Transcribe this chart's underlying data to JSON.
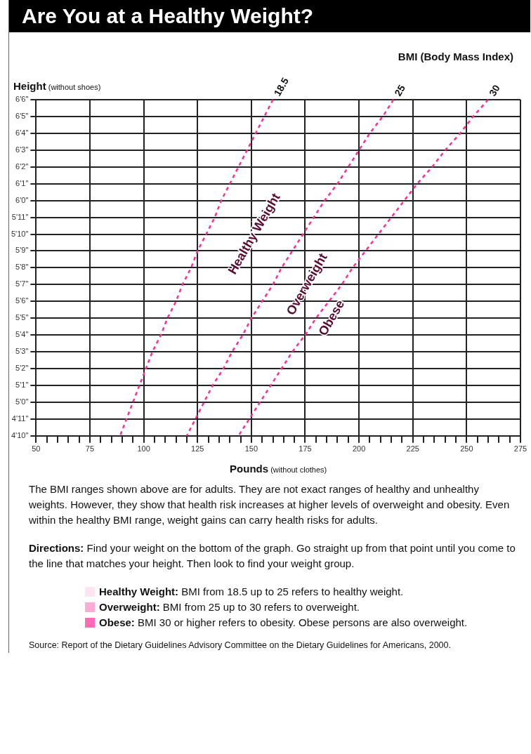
{
  "chart_data": {
    "type": "line",
    "orientation": "horizontal",
    "title": "Are You at a Healthy Weight?",
    "xlabel": "Pounds (without clothes)",
    "ylabel": "Height (without shoes)",
    "legend_title": "BMI (Body Mass Index)",
    "categories": [
      "6'6\"",
      "6'5\"",
      "6'4\"",
      "6'3\"",
      "6'2\"",
      "6'1\"",
      "6'0\"",
      "5'11\"",
      "5'10\"",
      "5'9\"",
      "5'8\"",
      "5'7\"",
      "5'6\"",
      "5'5\"",
      "5'4\"",
      "5'3\"",
      "5'2\"",
      "5'1\"",
      "5'0\"",
      "4'11\"",
      "4'10\""
    ],
    "xlim": [
      50,
      275
    ],
    "xticks": [
      50,
      {
        "value": 55,
        "label": null
      },
      {
        "value": 60,
        "label": null
      },
      {
        "value": 65,
        "label": null
      },
      {
        "value": 70,
        "label": null
      },
      75,
      {
        "value": 80,
        "label": null
      },
      {
        "value": 85,
        "label": null
      },
      {
        "value": 90,
        "label": null
      },
      {
        "value": 95,
        "label": null
      },
      100,
      {
        "value": 105,
        "label": null
      },
      {
        "value": 110,
        "label": null
      },
      {
        "value": 115,
        "label": null
      },
      {
        "value": 120,
        "label": null
      },
      125,
      {
        "value": 130,
        "label": null
      },
      {
        "value": 135,
        "label": null
      },
      {
        "value": 140,
        "label": null
      },
      {
        "value": 145,
        "label": null
      },
      150,
      {
        "value": 155,
        "label": null
      },
      {
        "value": 160,
        "label": null
      },
      {
        "value": 165,
        "label": null
      },
      {
        "value": 170,
        "label": null
      },
      175,
      {
        "value": 180,
        "label": null
      },
      {
        "value": 185,
        "label": null
      },
      {
        "value": 190,
        "label": null
      },
      {
        "value": 195,
        "label": null
      },
      200,
      {
        "value": 205,
        "label": null
      },
      {
        "value": 210,
        "label": null
      },
      {
        "value": 215,
        "label": null
      },
      {
        "value": 220,
        "label": null
      },
      225,
      {
        "value": 230,
        "label": null
      },
      {
        "value": 235,
        "label": null
      },
      {
        "value": 240,
        "label": null
      },
      {
        "value": 245,
        "label": null
      },
      250,
      {
        "value": 255,
        "label": null
      },
      {
        "value": 260,
        "label": null
      },
      {
        "value": 265,
        "label": null
      },
      {
        "value": 270,
        "label": null
      },
      275
    ],
    "grid": true,
    "legend": false,
    "marker": "none",
    "line_style": "dashed",
    "series": [
      {
        "name": "18.5",
        "color": "#ff2d95",
        "values": [
          160,
          156,
          152,
          148,
          144,
          140,
          136,
          133,
          129,
          125,
          122,
          118,
          115,
          111,
          108,
          104,
          101,
          98,
          95,
          92,
          89
        ]
      },
      {
        "name": "25",
        "color": "#ff2d95",
        "values": [
          216,
          211,
          205,
          200,
          195,
          190,
          184,
          179,
          174,
          169,
          164,
          160,
          155,
          150,
          146,
          141,
          137,
          132,
          128,
          124,
          120
        ]
      },
      {
        "name": "30",
        "color": "#ff2d95",
        "values": [
          260,
          253,
          247,
          240,
          234,
          227,
          221,
          215,
          209,
          203,
          197,
          192,
          186,
          180,
          175,
          169,
          164,
          159,
          154,
          149,
          144
        ]
      }
    ],
    "annotations": [
      "Healthy Weight",
      "Overweight",
      "Obese",
      "The BMI ranges shown above are for adults. They are not exact ranges of healthy and unhealthy weights. However, they show that health risk increases at higher levels of overweight and obesity. Even within the healthy BMI range, weight gains can carry health risks for adults.",
      "Directions: Find your weight on the bottom of the graph. Go straight up from that point until you come to the line that matches your height. Then look to find your weight group.",
      "Healthy Weight: BMI from 18.5 up to 25 refers to healthy weight.",
      "Overweight: BMI from 25 up to 30 refers to overweight.",
      "Obese: BMI 30 or higher refers to obesity. Obese persons are also overweight.",
      "Source: Report of the Dietary Guidelines Advisory Committee on the Dietary Guidelines for Americans, 2000."
    ]
  }
}
